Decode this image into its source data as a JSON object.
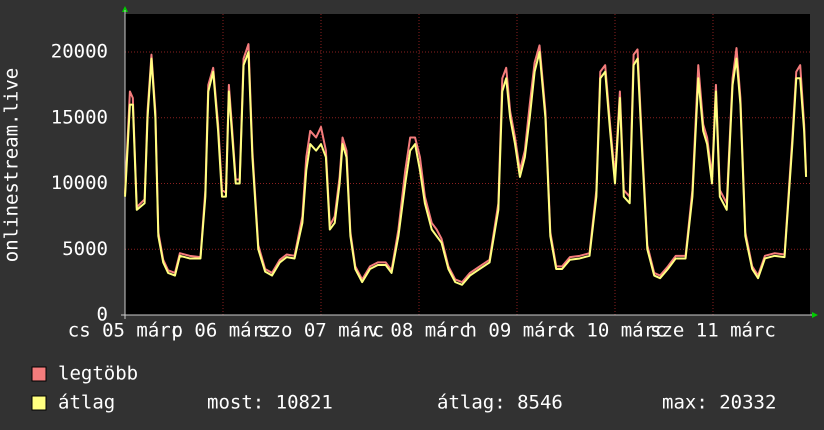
{
  "chart_data": {
    "type": "line",
    "y_label": "onlinestream.live",
    "xlim": [
      0,
      6.99
    ],
    "ylim": [
      0,
      22890
    ],
    "yticks": [
      0,
      5000,
      10000,
      15000,
      20000
    ],
    "xticks": [
      {
        "value": 0,
        "label": "cs 05 márc"
      },
      {
        "value": 1,
        "label": "p 06 márc"
      },
      {
        "value": 2,
        "label": "szo 07 márc"
      },
      {
        "value": 3,
        "label": "v 08 márc"
      },
      {
        "value": 4,
        "label": "h 09 márc"
      },
      {
        "value": 5,
        "label": "k 10 márc"
      },
      {
        "value": 6,
        "label": "sze 11 márc"
      }
    ],
    "grid": true,
    "x": [
      0,
      0.05,
      0.08,
      0.12,
      0.2,
      0.23,
      0.27,
      0.31,
      0.34,
      0.39,
      0.44,
      0.51,
      0.56,
      0.66,
      0.77,
      0.82,
      0.85,
      0.9,
      0.95,
      0.99,
      1.03,
      1.06,
      1.09,
      1.13,
      1.17,
      1.21,
      1.26,
      1.3,
      1.36,
      1.43,
      1.5,
      1.58,
      1.65,
      1.73,
      1.81,
      1.85,
      1.89,
      1.95,
      2.0,
      2.05,
      2.09,
      2.14,
      2.19,
      2.22,
      2.26,
      2.3,
      2.35,
      2.42,
      2.5,
      2.58,
      2.66,
      2.72,
      2.79,
      2.86,
      2.91,
      2.96,
      3.01,
      3.06,
      3.13,
      3.18,
      3.23,
      3.3,
      3.37,
      3.44,
      3.52,
      3.62,
      3.72,
      3.81,
      3.85,
      3.89,
      3.93,
      3.98,
      4.03,
      4.08,
      4.13,
      4.18,
      4.23,
      4.29,
      4.34,
      4.4,
      4.46,
      4.54,
      4.64,
      4.74,
      4.81,
      4.85,
      4.9,
      4.95,
      5.0,
      5.05,
      5.09,
      5.15,
      5.19,
      5.23,
      5.28,
      5.33,
      5.4,
      5.46,
      5.54,
      5.62,
      5.72,
      5.79,
      5.85,
      5.9,
      5.94,
      5.99,
      6.03,
      6.07,
      6.14,
      6.2,
      6.24,
      6.28,
      6.33,
      6.4,
      6.46,
      6.53,
      6.63,
      6.73,
      6.81,
      6.85,
      6.89,
      6.93,
      6.95
    ],
    "series": [
      {
        "name": "legtöbb",
        "color": "#f47c7c",
        "values": [
          9200,
          17000,
          16500,
          8200,
          8800,
          15500,
          19800,
          15500,
          6300,
          4200,
          3400,
          3200,
          4700,
          4500,
          4400,
          9500,
          17500,
          18800,
          14500,
          9500,
          9300,
          17500,
          14500,
          10300,
          10300,
          19500,
          20600,
          12500,
          5300,
          3500,
          3200,
          4200,
          4600,
          4500,
          7500,
          12000,
          14000,
          13500,
          14300,
          12500,
          6800,
          7500,
          10500,
          13500,
          12500,
          6300,
          3700,
          2700,
          3700,
          4000,
          4000,
          3400,
          6500,
          11000,
          13500,
          13500,
          12000,
          9000,
          7000,
          6500,
          5800,
          3700,
          2700,
          2500,
          3200,
          3700,
          4200,
          8500,
          18000,
          18800,
          15500,
          13500,
          11000,
          12500,
          16000,
          19200,
          20500,
          15500,
          6300,
          3700,
          3700,
          4400,
          4500,
          4700,
          9500,
          18500,
          19000,
          14500,
          10500,
          17000,
          9500,
          9000,
          19800,
          20200,
          12500,
          5300,
          3200,
          3000,
          3700,
          4500,
          4500,
          9500,
          19000,
          14500,
          13500,
          10500,
          17500,
          9500,
          8500,
          18000,
          20300,
          16500,
          6300,
          3700,
          3000,
          4500,
          4700,
          4600,
          13500,
          18500,
          19000,
          14500,
          10821
        ]
      },
      {
        "name": "átlag",
        "color": "#ffff80",
        "values": [
          9000,
          16000,
          16000,
          8000,
          8500,
          15000,
          19500,
          15000,
          6000,
          4000,
          3200,
          3000,
          4500,
          4300,
          4300,
          9000,
          17000,
          18500,
          14000,
          9000,
          9000,
          17000,
          14000,
          10000,
          10000,
          19000,
          20000,
          12000,
          5000,
          3300,
          3000,
          4000,
          4400,
          4300,
          7000,
          11000,
          13000,
          12500,
          13000,
          12000,
          6500,
          7000,
          10000,
          13000,
          12000,
          6000,
          3500,
          2500,
          3500,
          3800,
          3800,
          3200,
          6000,
          10000,
          12500,
          13000,
          11000,
          8500,
          6500,
          6000,
          5500,
          3500,
          2500,
          2300,
          3000,
          3500,
          4000,
          8000,
          17000,
          18000,
          15000,
          13000,
          10500,
          12000,
          15000,
          18500,
          20000,
          15000,
          6000,
          3500,
          3500,
          4200,
          4300,
          4500,
          9000,
          18000,
          18500,
          14000,
          10000,
          16500,
          9000,
          8500,
          19000,
          19500,
          12000,
          5000,
          3000,
          2800,
          3500,
          4300,
          4300,
          9000,
          18000,
          14000,
          13000,
          10000,
          17000,
          9000,
          8000,
          17500,
          19500,
          16000,
          6000,
          3500,
          2800,
          4300,
          4500,
          4400,
          13000,
          18000,
          18000,
          14000,
          10500
        ]
      }
    ],
    "stats": [
      "most: 10821",
      "átlag: 8546",
      "max: 20332"
    ]
  }
}
